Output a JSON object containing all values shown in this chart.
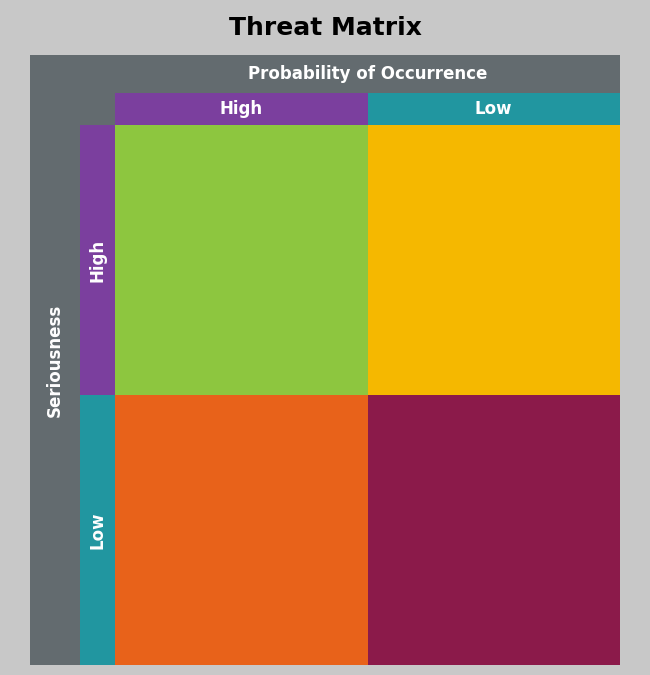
{
  "title": "Threat Matrix",
  "title_fontsize": 18,
  "title_fontweight": "bold",
  "outer_bg_color": "#c8c8c8",
  "header_bar_color": "#636b6f",
  "seriousness_label": "Seriousness",
  "probability_label": "Probability of Occurrence",
  "col_labels": [
    "High",
    "Low"
  ],
  "col_label_colors": [
    "#7b3f9e",
    "#2196a0"
  ],
  "row_labels": [
    "High",
    "Low"
  ],
  "row_label_colors": [
    "#7b3f9e",
    "#2196a0"
  ],
  "cell_colors": [
    [
      "#8dc63f",
      "#f5b800"
    ],
    [
      "#e8621a",
      "#8b1a4a"
    ]
  ],
  "label_text_color": "#ffffff",
  "header_fontsize": 12,
  "row_col_label_fontsize": 12
}
